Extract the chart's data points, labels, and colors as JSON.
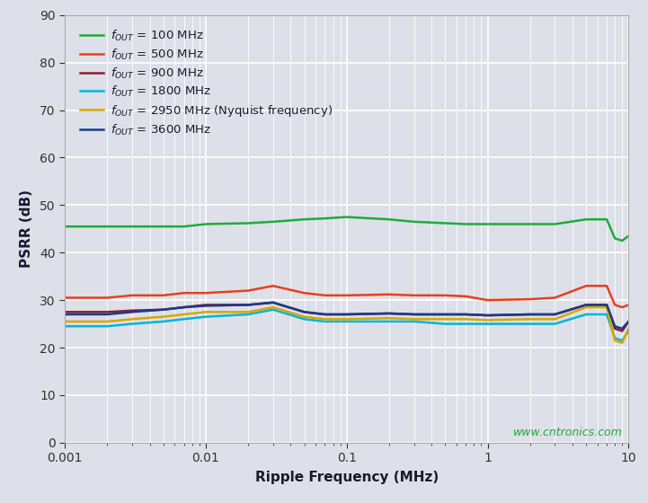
{
  "title": "",
  "xlabel": "Ripple Frequency (MHz)",
  "ylabel": "PSRR (dB)",
  "xlim": [
    0.001,
    10
  ],
  "ylim": [
    0,
    90
  ],
  "yticks": [
    0,
    10,
    20,
    30,
    40,
    50,
    60,
    70,
    80,
    90
  ],
  "background_color": "#dde0e8",
  "grid_color": "#ffffff",
  "watermark": "www.cntronics.com",
  "series": [
    {
      "label_main": "f",
      "label_sub": "OUT",
      "label_rest": " = 100 MHz",
      "color": "#1faa3c",
      "x": [
        0.001,
        0.002,
        0.003,
        0.005,
        0.007,
        0.01,
        0.02,
        0.03,
        0.05,
        0.07,
        0.1,
        0.2,
        0.3,
        0.5,
        0.7,
        1.0,
        2.0,
        3.0,
        5.0,
        7.0,
        8.0,
        9.0,
        10.0
      ],
      "y": [
        45.5,
        45.5,
        45.5,
        45.5,
        45.5,
        46.0,
        46.2,
        46.5,
        47.0,
        47.2,
        47.5,
        47.0,
        46.5,
        46.2,
        46.0,
        46.0,
        46.0,
        46.0,
        47.0,
        47.0,
        43.0,
        42.5,
        43.5
      ]
    },
    {
      "label_main": "f",
      "label_sub": "OUT",
      "label_rest": " = 500 MHz",
      "color": "#e8401c",
      "x": [
        0.001,
        0.002,
        0.003,
        0.005,
        0.007,
        0.01,
        0.02,
        0.03,
        0.05,
        0.07,
        0.1,
        0.2,
        0.3,
        0.5,
        0.7,
        1.0,
        2.0,
        3.0,
        5.0,
        7.0,
        8.0,
        9.0,
        10.0
      ],
      "y": [
        30.5,
        30.5,
        31.0,
        31.0,
        31.5,
        31.5,
        32.0,
        33.0,
        31.5,
        31.0,
        31.0,
        31.2,
        31.0,
        31.0,
        30.8,
        30.0,
        30.2,
        30.5,
        33.0,
        33.0,
        29.0,
        28.5,
        29.0
      ]
    },
    {
      "label_main": "f",
      "label_sub": "OUT",
      "label_rest": " = 900 MHz",
      "color": "#8b1a2a",
      "x": [
        0.001,
        0.002,
        0.003,
        0.005,
        0.007,
        0.01,
        0.02,
        0.03,
        0.05,
        0.07,
        0.1,
        0.2,
        0.3,
        0.5,
        0.7,
        1.0,
        2.0,
        3.0,
        5.0,
        7.0,
        8.0,
        9.0,
        10.0
      ],
      "y": [
        27.5,
        27.5,
        27.8,
        28.0,
        28.5,
        29.0,
        29.0,
        29.5,
        27.5,
        27.0,
        27.0,
        27.2,
        27.0,
        27.0,
        27.0,
        26.8,
        27.0,
        27.0,
        29.0,
        29.0,
        24.0,
        23.5,
        25.5
      ]
    },
    {
      "label_main": "f",
      "label_sub": "OUT",
      "label_rest": " = 1800 MHz",
      "color": "#00b5d8",
      "x": [
        0.001,
        0.002,
        0.003,
        0.005,
        0.007,
        0.01,
        0.02,
        0.03,
        0.05,
        0.07,
        0.1,
        0.2,
        0.3,
        0.5,
        0.7,
        1.0,
        2.0,
        3.0,
        5.0,
        7.0,
        8.0,
        9.0,
        10.0
      ],
      "y": [
        24.5,
        24.5,
        25.0,
        25.5,
        26.0,
        26.5,
        27.0,
        28.0,
        26.0,
        25.5,
        25.5,
        25.5,
        25.5,
        25.0,
        25.0,
        25.0,
        25.0,
        25.0,
        27.0,
        27.0,
        22.0,
        21.5,
        23.5
      ]
    },
    {
      "label_main": "f",
      "label_sub": "OUT",
      "label_rest": " = 2950 MHz (Nyquist frequency)",
      "color": "#d4a800",
      "x": [
        0.001,
        0.002,
        0.003,
        0.005,
        0.007,
        0.01,
        0.02,
        0.03,
        0.05,
        0.07,
        0.1,
        0.2,
        0.3,
        0.5,
        0.7,
        1.0,
        2.0,
        3.0,
        5.0,
        7.0,
        8.0,
        9.0,
        10.0
      ],
      "y": [
        25.5,
        25.5,
        26.0,
        26.5,
        27.0,
        27.5,
        27.5,
        28.5,
        26.5,
        26.0,
        26.0,
        26.2,
        26.0,
        26.0,
        26.0,
        25.8,
        26.0,
        26.0,
        28.5,
        28.5,
        21.5,
        21.0,
        24.0
      ]
    },
    {
      "label_main": "f",
      "label_sub": "OUT",
      "label_rest": " = 3600 MHz",
      "color": "#1a3a8c",
      "x": [
        0.001,
        0.002,
        0.003,
        0.005,
        0.007,
        0.01,
        0.02,
        0.03,
        0.05,
        0.07,
        0.1,
        0.2,
        0.3,
        0.5,
        0.7,
        1.0,
        2.0,
        3.0,
        5.0,
        7.0,
        8.0,
        9.0,
        10.0
      ],
      "y": [
        27.0,
        27.0,
        27.5,
        28.0,
        28.5,
        28.8,
        29.0,
        29.5,
        27.5,
        27.0,
        27.0,
        27.2,
        27.0,
        27.0,
        27.0,
        26.8,
        27.0,
        27.0,
        29.0,
        29.0,
        24.5,
        24.0,
        25.5
      ]
    }
  ]
}
